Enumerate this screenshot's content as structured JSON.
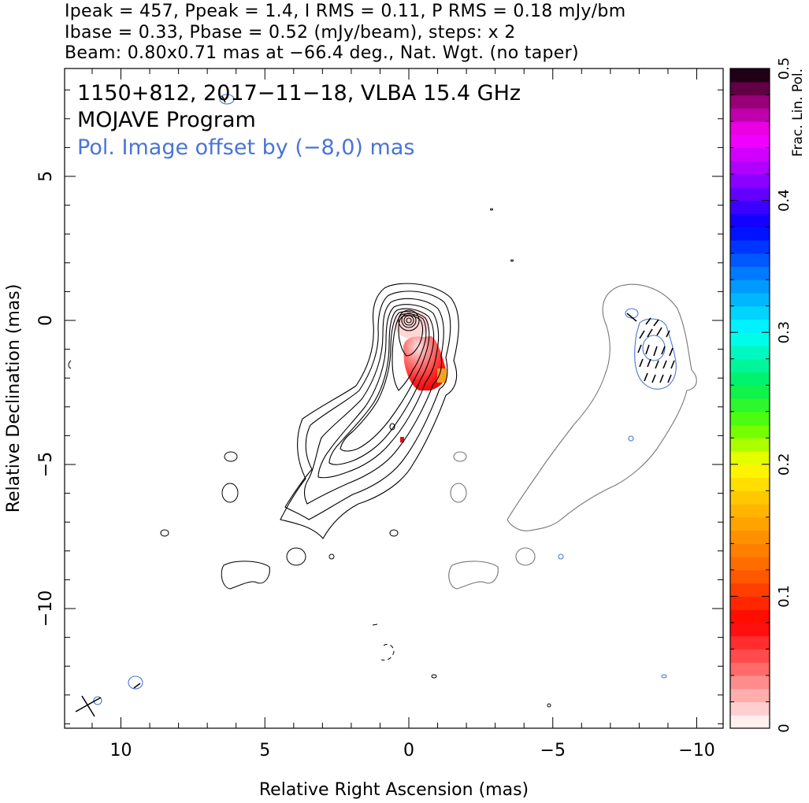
{
  "header": {
    "line1": "Ipeak = 457, Ppeak = 1.4, I RMS = 0.11, P RMS = 0.18 mJy/bm",
    "line2": "Ibase = 0.33, Pbase = 0.52 (mJy/beam), steps: x 2",
    "line3": "Beam: 0.80x0.71 mas at −66.4 deg., Nat. Wgt. (no taper)"
  },
  "chart_data": {
    "type": "heatmap",
    "annotations": {
      "source_line": "1150+812, 2017−11−18, VLBA 15.4 GHz",
      "program_line": "MOJAVE Program",
      "pol_offset_line": "Pol. Image offset by (−8,0) mas"
    },
    "xlabel": "Relative Right Ascension (mas)",
    "ylabel": "Relative Declination (mas)",
    "xlim": [
      12,
      -11
    ],
    "ylim": [
      -14,
      8.7
    ],
    "x_ticks": [
      10,
      5,
      0,
      -5,
      -10
    ],
    "x_tick_labels": [
      "10",
      "5",
      "0",
      "−5",
      "−10"
    ],
    "y_ticks": [
      5,
      0,
      -5,
      -10
    ],
    "y_tick_labels": [
      "5",
      "0",
      "−5",
      "−10"
    ],
    "colorbar": {
      "label": "Frac. Lin. Pol.",
      "range": [
        0,
        0.5
      ],
      "ticks": [
        0,
        0.1,
        0.2,
        0.3,
        0.4,
        0.5
      ],
      "tick_labels": [
        "0",
        "0.1",
        "0.2",
        "0.3",
        "0.4",
        "0.5"
      ]
    },
    "intensity_peak_position": [
      0,
      0
    ],
    "contour_base_mJy_per_beam": 0.33,
    "contour_step_factor": 2,
    "polarization_offset_mas": [
      -8,
      0
    ],
    "colors": {
      "stokes_i_contours": "#000000",
      "polarization_contours": "#4a74d6",
      "pol_image_contour": "#777777",
      "pol_vectors": "#000000"
    }
  }
}
